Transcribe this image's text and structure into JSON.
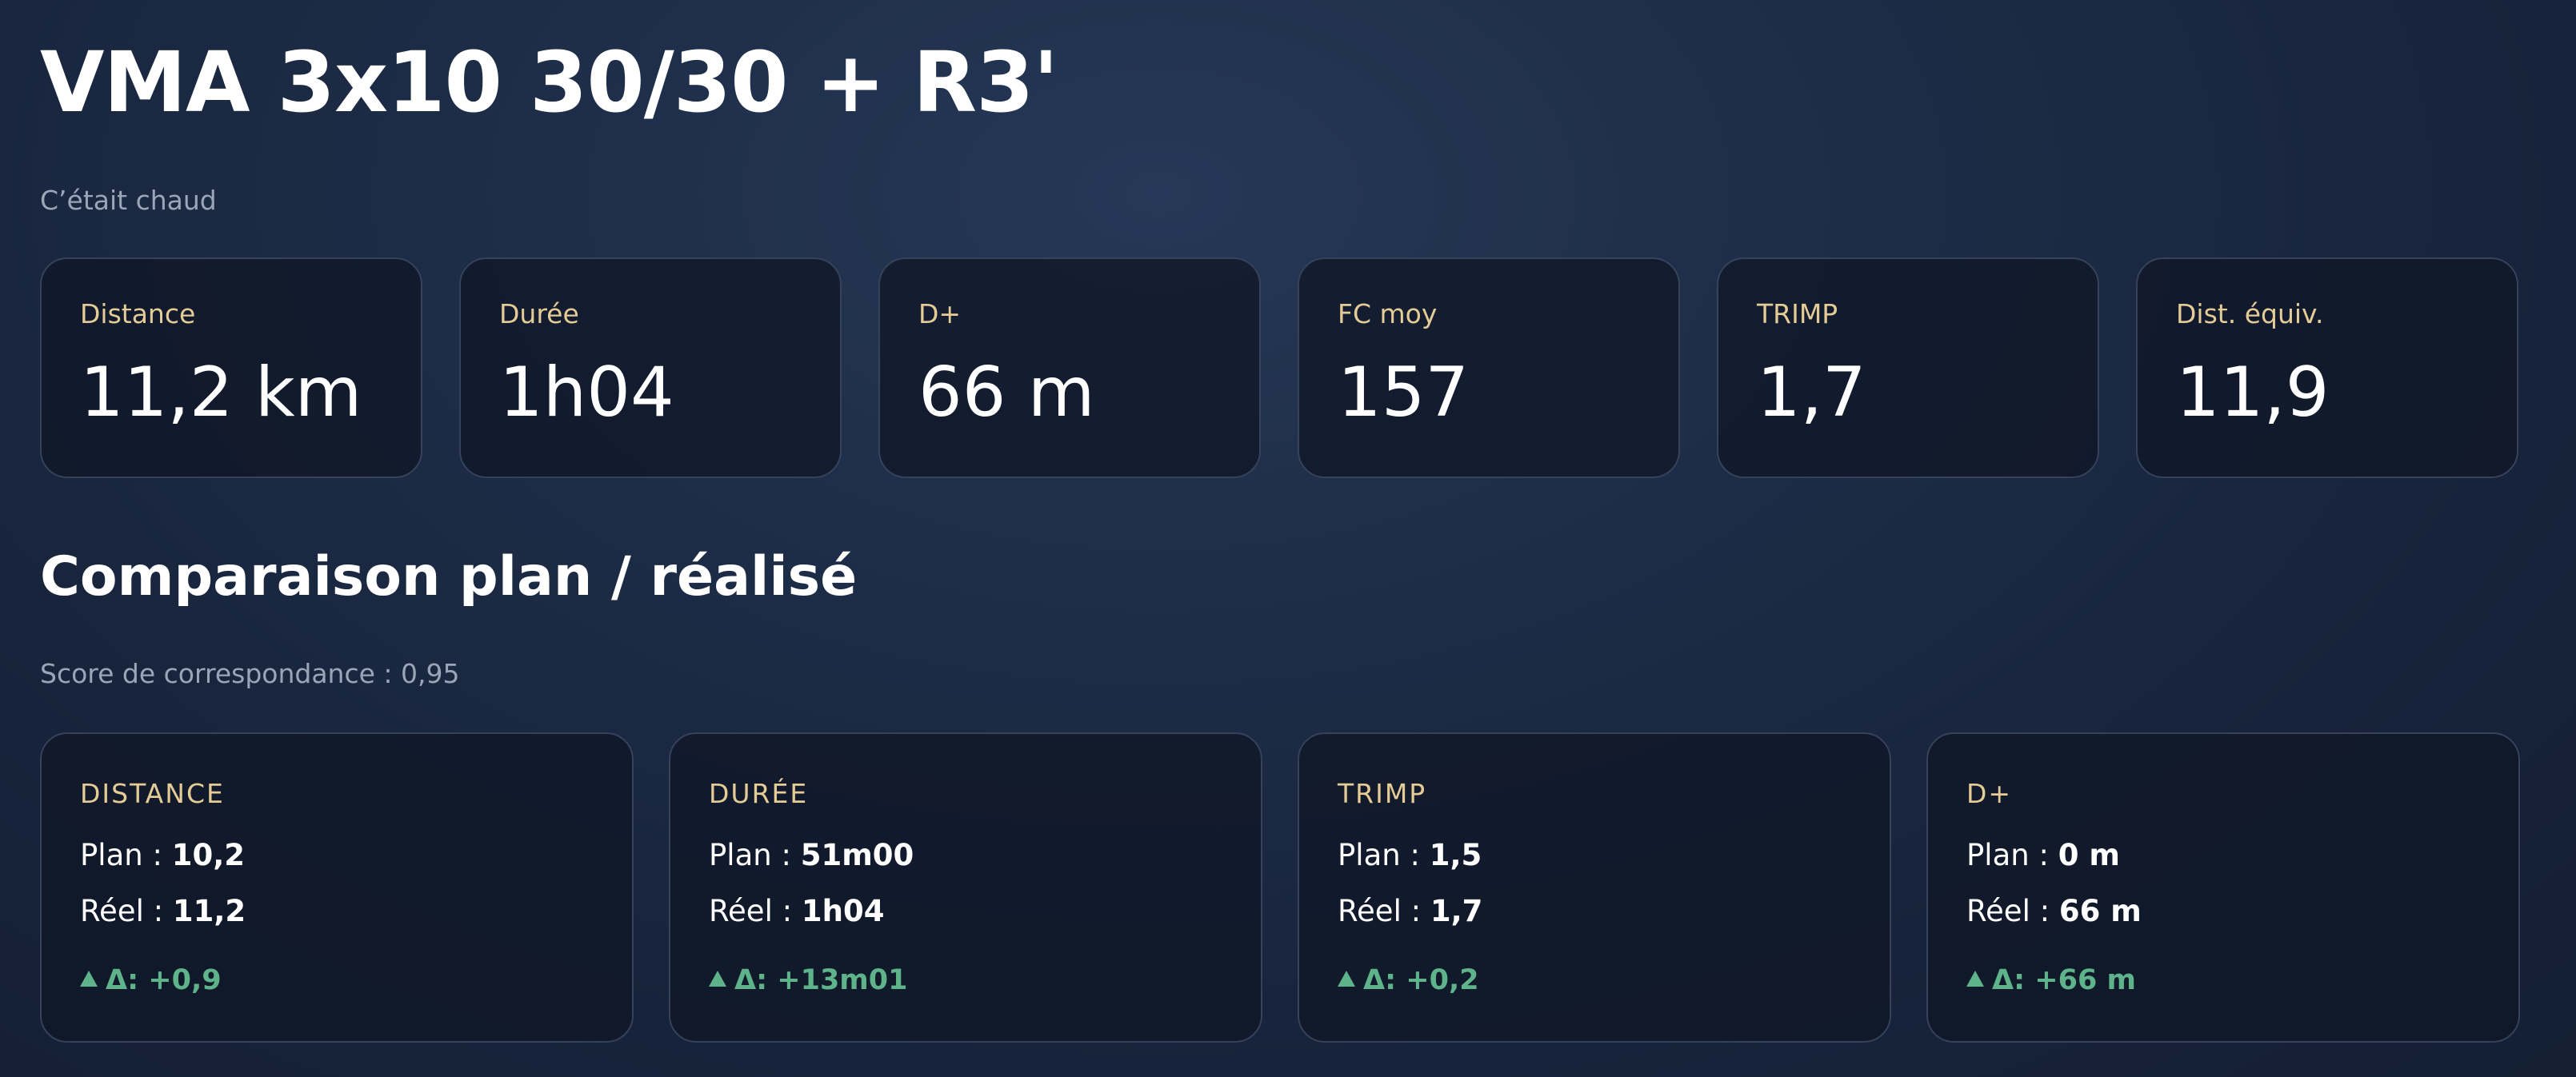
{
  "header": {
    "title": "VMA 3x10 30/30 + R3'",
    "subtitle": "C’était chaud"
  },
  "stats": [
    {
      "label": "Distance",
      "value": "11,2 km"
    },
    {
      "label": "Durée",
      "value": "1h04"
    },
    {
      "label": "D+",
      "value": "66 m"
    },
    {
      "label": "FC moy",
      "value": "157"
    },
    {
      "label": "TRIMP",
      "value": "1,7"
    },
    {
      "label": "Dist. équiv.",
      "value": "11,9"
    }
  ],
  "comparison": {
    "title": "Comparaison plan / réalisé",
    "score": "Score de correspondance : 0,95",
    "plan_prefix": "Plan :",
    "reel_prefix": "Réel :",
    "cards": [
      {
        "label": "DISTANCE",
        "plan": "10,2",
        "reel": "11,2",
        "delta": "Δ: +0,9",
        "trend_icon": "triangle-up-icon"
      },
      {
        "label": "DURÉE",
        "plan": "51m00",
        "reel": "1h04",
        "delta": "Δ: +13m01",
        "trend_icon": "triangle-up-icon"
      },
      {
        "label": "TRIMP",
        "plan": "1,5",
        "reel": "1,7",
        "delta": "Δ: +0,2",
        "trend_icon": "triangle-up-icon"
      },
      {
        "label": "D+",
        "plan": "0 m",
        "reel": "66 m",
        "delta": "Δ: +66 m",
        "trend_icon": "triangle-up-icon"
      }
    ]
  },
  "colors": {
    "background": "#1d2c47",
    "card_background": "#111a2b",
    "card_border": "#35425a",
    "label_accent": "#e5cc97",
    "muted_text": "#9aa6b8",
    "delta_positive": "#5fb38a"
  }
}
